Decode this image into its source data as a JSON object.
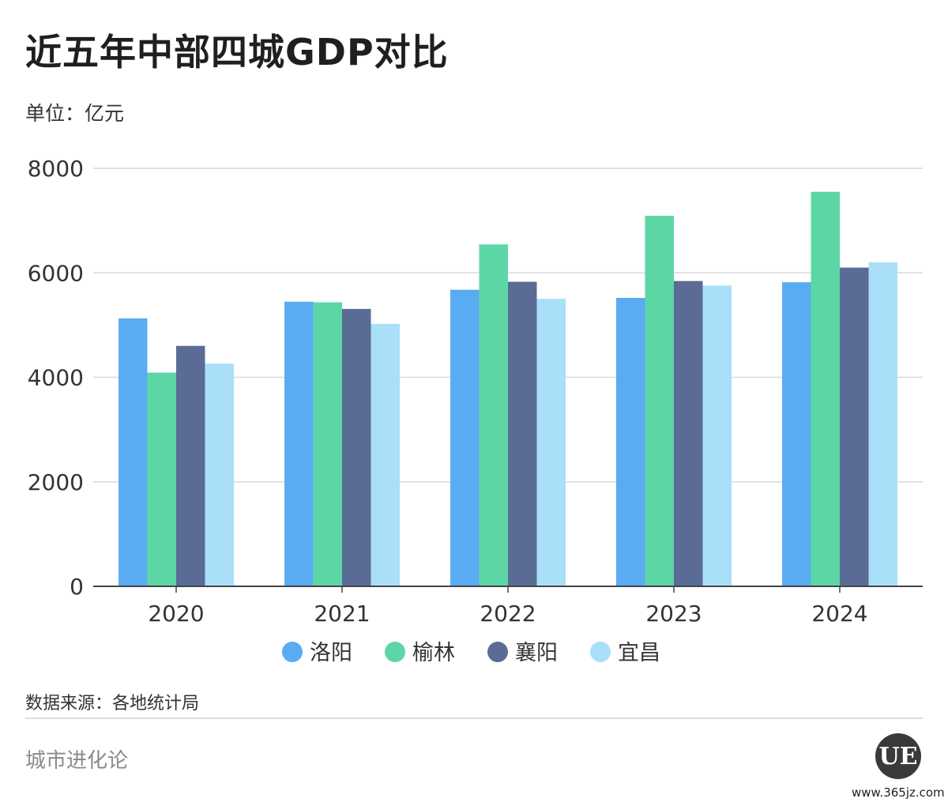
{
  "title": "近五年中部四城GDP对比",
  "subtitle": "单位：亿元",
  "source": "数据来源：各地统计局",
  "brand": "城市进化论",
  "logo_text": "UE",
  "website": "www.365jz.com",
  "chart_data": {
    "type": "bar",
    "categories": [
      "2020",
      "2021",
      "2022",
      "2023",
      "2024"
    ],
    "series": [
      {
        "name": "洛阳",
        "color": "#5aacf2",
        "values": [
          5128,
          5447,
          5676,
          5520,
          5820
        ]
      },
      {
        "name": "榆林",
        "color": "#5dd6a6",
        "values": [
          4090,
          5436,
          6544,
          7090,
          7550
        ]
      },
      {
        "name": "襄阳",
        "color": "#5a6c95",
        "values": [
          4602,
          5309,
          5828,
          5843,
          6100
        ]
      },
      {
        "name": "宜昌",
        "color": "#a9dff9",
        "values": [
          4261,
          5023,
          5502,
          5756,
          6200
        ]
      }
    ],
    "ylim": [
      0,
      8000
    ],
    "yticks": [
      "0",
      "2000",
      "4000",
      "6000",
      "8000"
    ],
    "grid": true,
    "legend_position": "bottom"
  }
}
